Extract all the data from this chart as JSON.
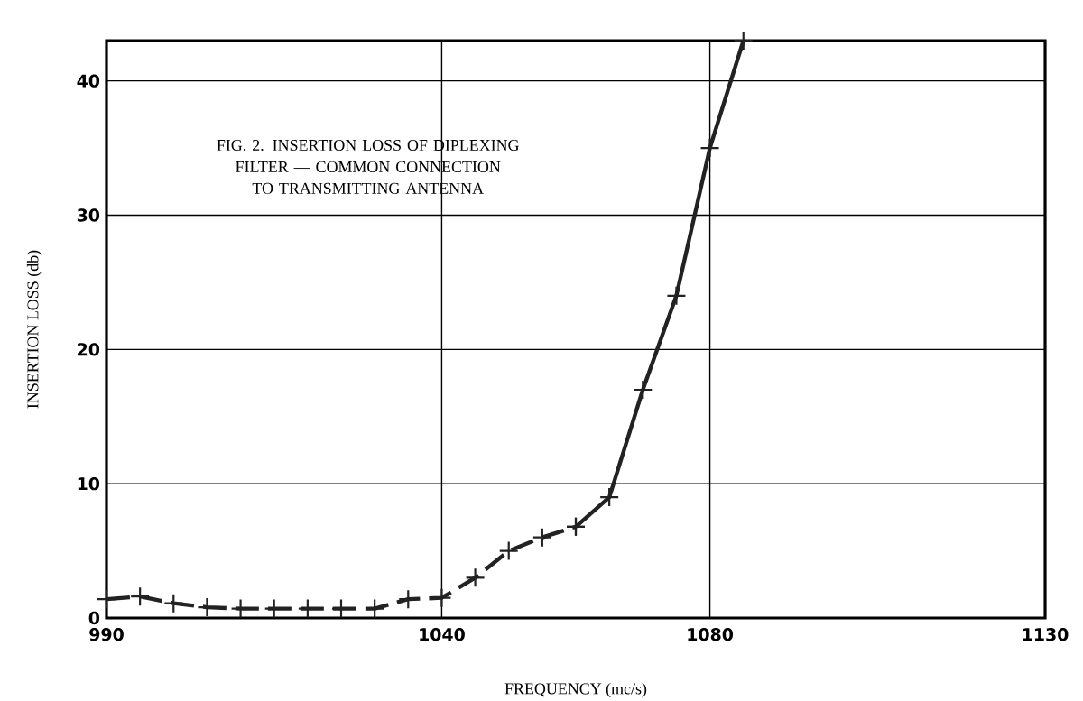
{
  "chart_data": {
    "type": "line",
    "title": "FIG. 2.  INSERTION LOSS OF DIPLEXING FILTER — COMMON CONNECTION TO TRANSMITTING ANTENNA",
    "xlabel": "FREQUENCY (mc/s)",
    "ylabel": "INSERTION LOSS (db)",
    "xlim": [
      990,
      1130
    ],
    "ylim": [
      0,
      43
    ],
    "xticks": [
      990,
      1040,
      1080,
      1130
    ],
    "yticks": [
      0,
      10,
      20,
      30,
      40
    ],
    "grid": true,
    "series": [
      {
        "color": "#222222",
        "line_style": "dashed",
        "marker": "cross",
        "x": [
          990,
          995,
          1000,
          1005,
          1010,
          1015,
          1020,
          1025,
          1030,
          1035,
          1040,
          1045,
          1050,
          1055,
          1060
        ],
        "values": [
          1.4,
          1.6,
          1.1,
          0.8,
          0.7,
          0.7,
          0.7,
          0.7,
          0.7,
          1.4,
          1.5,
          3.0,
          5.0,
          6.0,
          6.8
        ]
      },
      {
        "color": "#222222",
        "line_style": "solid",
        "marker": "cross",
        "x": [
          1060,
          1065,
          1070,
          1075,
          1080,
          1085
        ],
        "values": [
          6.8,
          9.0,
          17.0,
          24.0,
          35.0,
          43.0
        ]
      }
    ]
  }
}
